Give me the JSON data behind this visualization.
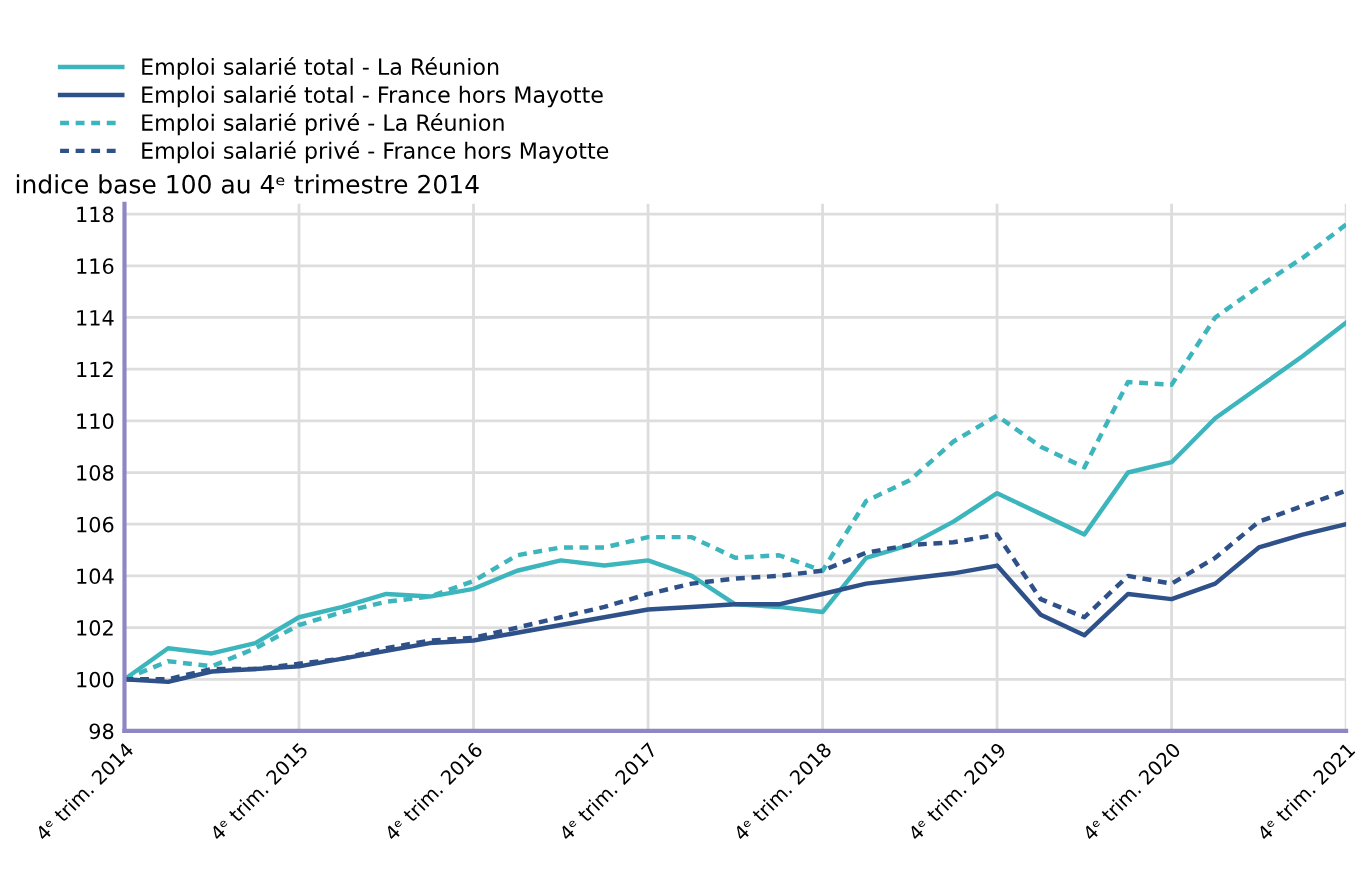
{
  "chart_data": {
    "type": "line",
    "ylabel": "indice base 100 au 4ᵉ trimestre 2014",
    "categories": [
      "4ᵉ trim. 2014",
      null,
      null,
      null,
      "4ᵉ trim. 2015",
      null,
      null,
      null,
      "4ᵉ trim. 2016",
      null,
      null,
      null,
      "4ᵉ trim. 2017",
      null,
      null,
      null,
      "4ᵉ trim. 2018",
      null,
      null,
      null,
      "4ᵉ trim. 2019",
      null,
      null,
      null,
      "4ᵉ trim. 2020",
      null,
      null,
      null,
      "4ᵉ trim. 2021"
    ],
    "series": [
      {
        "name": "Emploi salarié total - La Réunion",
        "color": "#3db5bd",
        "line_style": "solid",
        "values": [
          100,
          101.2,
          101.0,
          101.4,
          102.4,
          102.8,
          103.3,
          103.2,
          103.5,
          104.2,
          104.6,
          104.4,
          104.6,
          104.0,
          102.9,
          102.8,
          102.6,
          104.7,
          105.2,
          106.1,
          107.2,
          106.4,
          105.6,
          108.0,
          108.4,
          110.1,
          111.3,
          112.5,
          113.8
        ]
      },
      {
        "name": "Emploi salarié total - France hors Mayotte",
        "color": "#2f5189",
        "line_style": "solid",
        "values": [
          100,
          99.9,
          100.3,
          100.4,
          100.5,
          100.8,
          101.1,
          101.4,
          101.5,
          101.8,
          102.1,
          102.4,
          102.7,
          102.8,
          102.9,
          102.9,
          103.3,
          103.7,
          103.9,
          104.1,
          104.4,
          102.5,
          101.7,
          103.3,
          103.1,
          103.7,
          105.1,
          105.6,
          106.0
        ]
      },
      {
        "name": "Emploi salarié privé - La Réunion",
        "color": "#3db5bd",
        "line_style": "dotted",
        "values": [
          100,
          100.7,
          100.5,
          101.2,
          102.1,
          102.6,
          103.0,
          103.2,
          103.8,
          104.8,
          105.1,
          105.1,
          105.5,
          105.5,
          104.7,
          104.8,
          104.2,
          106.9,
          107.7,
          109.2,
          110.2,
          109.0,
          108.2,
          111.5,
          111.4,
          114.0,
          115.2,
          116.3,
          117.6
        ]
      },
      {
        "name": "Emploi salarié privé - France hors Mayotte",
        "color": "#2f5189",
        "line_style": "dotted",
        "values": [
          100,
          100,
          100.4,
          100.4,
          100.6,
          100.8,
          101.2,
          101.5,
          101.6,
          102.0,
          102.4,
          102.8,
          103.3,
          103.7,
          103.9,
          104.0,
          104.2,
          104.9,
          105.2,
          105.3,
          105.6,
          103.1,
          102.4,
          104.0,
          103.7,
          104.7,
          106.1,
          106.7,
          107.3
        ]
      }
    ],
    "ylim": [
      98,
      118.4
    ],
    "yticks": [
      98,
      100,
      102,
      104,
      106,
      108,
      110,
      112,
      114,
      116,
      118
    ],
    "grid": true,
    "legend": "top left",
    "marker": "none"
  }
}
